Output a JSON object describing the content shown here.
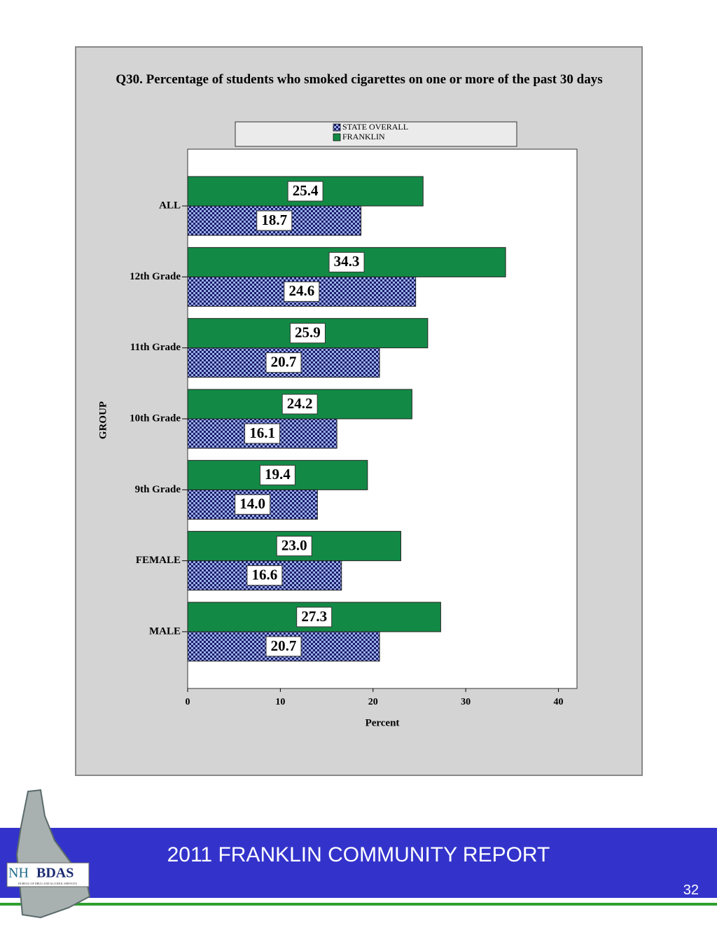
{
  "chart_data": {
    "type": "hbar",
    "title": "Q30. Percentage of students who smoked cigarettes on one or more of the past 30 days",
    "xlabel": "Percent",
    "ylabel": "GROUP",
    "categories": [
      "ALL",
      "12th Grade",
      "11th Grade",
      "10th Grade",
      "9th Grade",
      "FEMALE",
      "MALE"
    ],
    "series": [
      {
        "name": "STATE OVERALL",
        "color": "#1c1c6b",
        "pattern": "checkered",
        "values": [
          18.7,
          24.6,
          20.7,
          16.1,
          14.0,
          16.6,
          20.7
        ],
        "value_labels": [
          "18.7",
          "24.6",
          "20.7",
          "16.1",
          "14.0",
          "16.6",
          "20.7"
        ]
      },
      {
        "name": "FRANKLIN",
        "color": "#128a45",
        "values": [
          25.4,
          34.3,
          25.9,
          24.2,
          19.4,
          23.0,
          27.3
        ],
        "value_labels": [
          "25.4",
          "34.3",
          "25.9",
          "24.2",
          "19.4",
          "23.0",
          "27.3"
        ]
      }
    ],
    "xlim": [
      0,
      42
    ],
    "xticks": [
      0,
      10,
      20,
      30,
      40
    ]
  },
  "footer": {
    "title": "2011 FRANKLIN COMMUNITY REPORT",
    "page": "32",
    "logo_prefix": "NH",
    "logo_main": "BDAS",
    "logo_sub": "BUREAU OF DRUG AND ALCOHOL SERVICES"
  }
}
